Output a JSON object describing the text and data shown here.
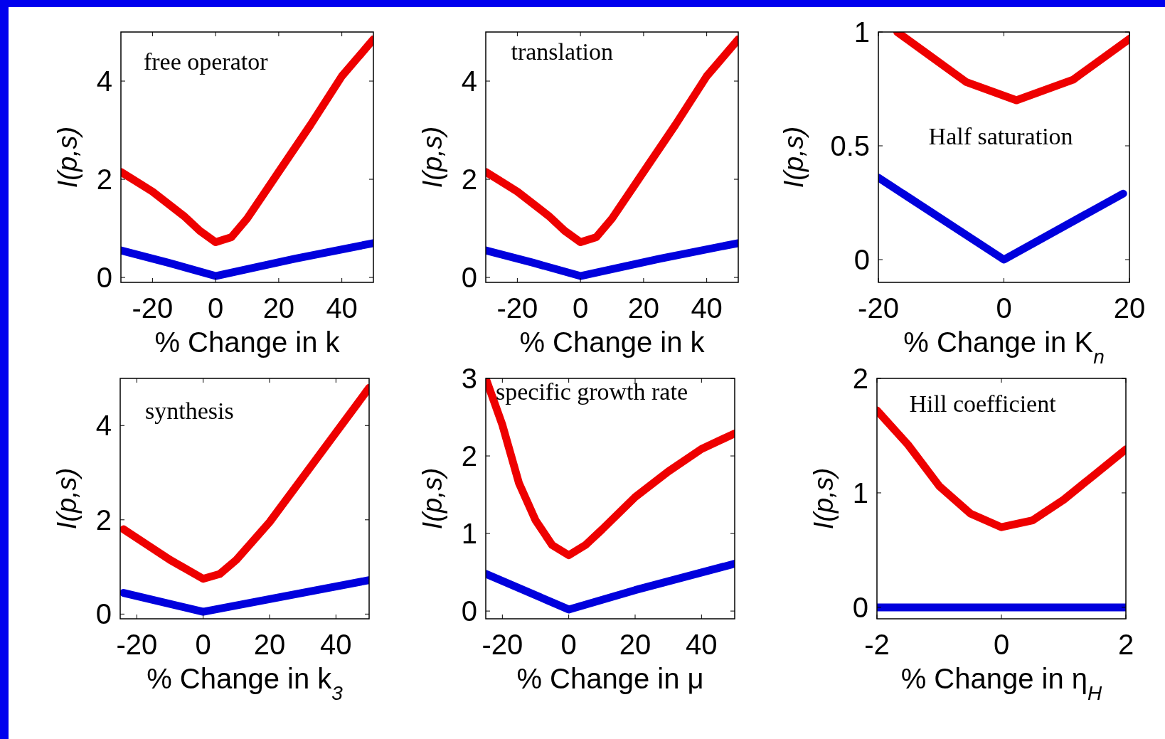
{
  "chart_data": [
    {
      "type": "line",
      "xlabel": "% Change in k",
      "ylabel": "I(p,s)",
      "annotations": [
        "free operator"
      ],
      "xlim": [
        -30,
        50
      ],
      "ylim": [
        -0.1,
        5
      ],
      "xticks": [
        -20,
        0,
        20,
        40
      ],
      "yticks": [
        0,
        2,
        4
      ],
      "series": [
        {
          "color": "#ee0000",
          "x": [
            -30,
            -20,
            -10,
            -5,
            0,
            5,
            10,
            20,
            30,
            40,
            50
          ],
          "values": [
            2.15,
            1.75,
            1.25,
            0.95,
            0.72,
            0.82,
            1.2,
            2.15,
            3.1,
            4.1,
            4.85
          ]
        },
        {
          "color": "#0000dd",
          "x": [
            -30,
            -15,
            0,
            25,
            50
          ],
          "values": [
            0.55,
            0.3,
            0.03,
            0.38,
            0.7
          ]
        }
      ]
    },
    {
      "type": "line",
      "xlabel": "% Change in k",
      "ylabel": "I(p,s)",
      "annotations": [
        "translation"
      ],
      "xlim": [
        -30,
        50
      ],
      "ylim": [
        -0.1,
        5
      ],
      "xticks": [
        -20,
        0,
        20,
        40
      ],
      "yticks": [
        0,
        2,
        4
      ],
      "series": [
        {
          "color": "#ee0000",
          "x": [
            -30,
            -20,
            -10,
            -5,
            0,
            5,
            10,
            20,
            30,
            40,
            50
          ],
          "values": [
            2.15,
            1.75,
            1.25,
            0.95,
            0.72,
            0.82,
            1.2,
            2.15,
            3.1,
            4.1,
            4.85
          ]
        },
        {
          "color": "#0000dd",
          "x": [
            -30,
            -15,
            0,
            25,
            50
          ],
          "values": [
            0.55,
            0.3,
            0.03,
            0.38,
            0.7
          ]
        }
      ]
    },
    {
      "type": "line",
      "xlabel": "% Change in K$_{n}$",
      "ylabel": "I(p,s)",
      "annotations": [
        "Half saturation"
      ],
      "xlim": [
        -20,
        20
      ],
      "ylim": [
        -0.1,
        1
      ],
      "xticks": [
        -20,
        0,
        20
      ],
      "yticks": [
        0,
        0.5,
        1
      ],
      "series": [
        {
          "color": "#ee0000",
          "x": [
            -17,
            -12,
            -6,
            2,
            11,
            20
          ],
          "values": [
            1.0,
            0.9,
            0.78,
            0.7,
            0.79,
            0.97
          ]
        },
        {
          "color": "#0000dd",
          "x": [
            -20,
            0,
            19
          ],
          "values": [
            0.36,
            0.0,
            0.29
          ]
        }
      ]
    },
    {
      "type": "line",
      "xlabel": "% Change in k$_{3}$",
      "ylabel": "I(p,s)",
      "annotations": [
        "synthesis"
      ],
      "xlim": [
        -25,
        50
      ],
      "ylim": [
        -0.1,
        5
      ],
      "xticks": [
        -20,
        0,
        20,
        40
      ],
      "yticks": [
        0,
        2,
        4
      ],
      "series": [
        {
          "color": "#ee0000",
          "x": [
            -24,
            -10,
            0,
            5,
            10,
            20,
            30,
            40,
            50
          ],
          "values": [
            1.8,
            1.15,
            0.75,
            0.85,
            1.15,
            1.95,
            2.9,
            3.85,
            4.8
          ]
        },
        {
          "color": "#0000dd",
          "x": [
            -24,
            0,
            50
          ],
          "values": [
            0.45,
            0.05,
            0.72
          ]
        }
      ]
    },
    {
      "type": "line",
      "xlabel": "% Change in μ",
      "ylabel": "I(p,s)",
      "annotations": [
        "specific growth rate"
      ],
      "xlim": [
        -25,
        50
      ],
      "ylim": [
        -0.1,
        3
      ],
      "xticks": [
        -20,
        0,
        20,
        40
      ],
      "yticks": [
        0,
        1,
        2,
        3
      ],
      "series": [
        {
          "color": "#ee0000",
          "x": [
            -25,
            -20,
            -15,
            -10,
            -5,
            0,
            5,
            10,
            20,
            30,
            40,
            50
          ],
          "values": [
            3.0,
            2.4,
            1.65,
            1.17,
            0.85,
            0.72,
            0.85,
            1.05,
            1.47,
            1.8,
            2.09,
            2.29
          ]
        },
        {
          "color": "#0000dd",
          "x": [
            -25,
            0,
            20,
            50
          ],
          "values": [
            0.48,
            0.02,
            0.27,
            0.61
          ]
        }
      ]
    },
    {
      "type": "line",
      "xlabel": "% Change in η$_{H}$",
      "ylabel": "I(p,s)",
      "annotations": [
        "Hill coefficient"
      ],
      "xlim": [
        -2,
        2
      ],
      "ylim": [
        -0.1,
        2
      ],
      "xticks": [
        -2,
        0,
        2
      ],
      "yticks": [
        0,
        1,
        2
      ],
      "series": [
        {
          "color": "#ee0000",
          "x": [
            -2,
            -1.5,
            -1,
            -0.5,
            0,
            0.5,
            1,
            1.5,
            2
          ],
          "values": [
            1.72,
            1.42,
            1.06,
            0.82,
            0.7,
            0.76,
            0.94,
            1.16,
            1.38
          ]
        },
        {
          "color": "#0000dd",
          "x": [
            -2,
            0,
            2
          ],
          "values": [
            0,
            0,
            0
          ]
        }
      ]
    }
  ]
}
